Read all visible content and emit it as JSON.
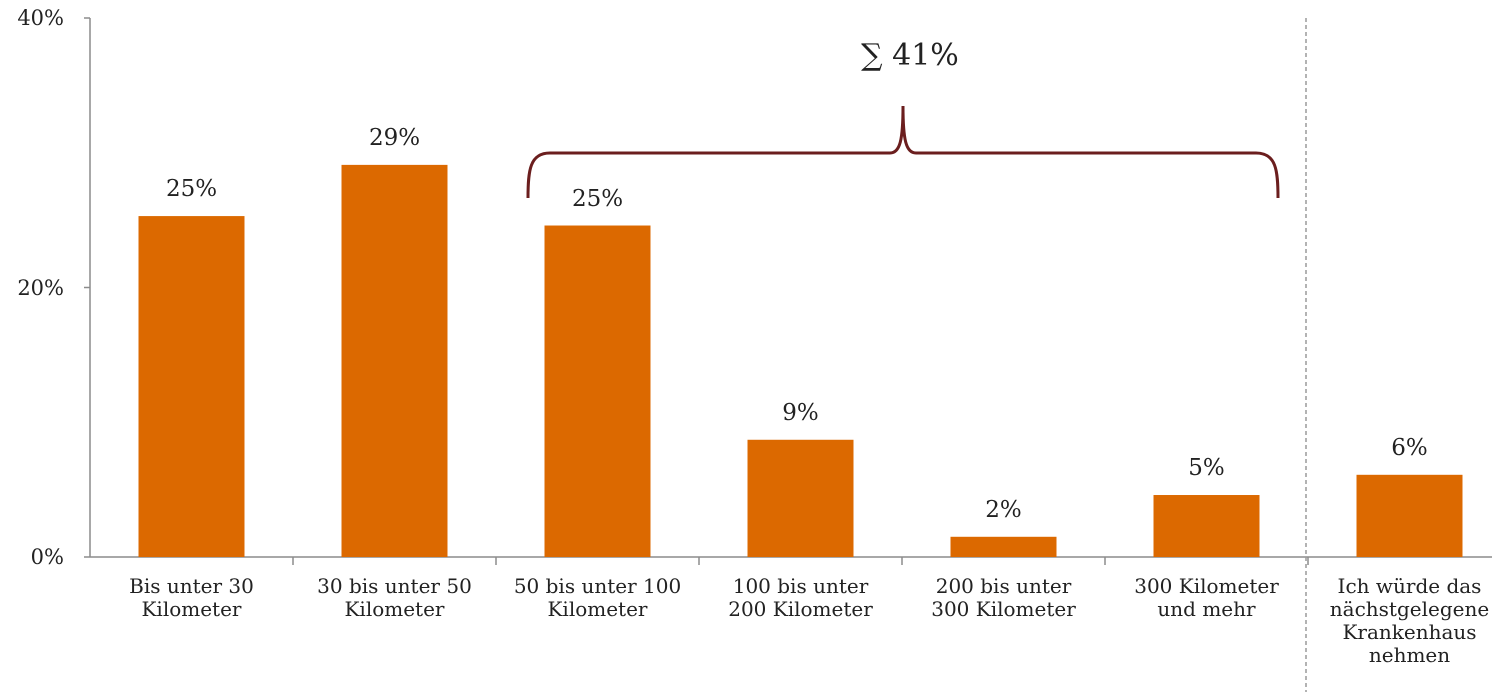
{
  "chart_data": {
    "type": "bar",
    "categories": [
      [
        "Bis unter 30",
        "Kilometer"
      ],
      [
        "30 bis unter 50",
        "Kilometer"
      ],
      [
        "50 bis unter 100",
        "Kilometer"
      ],
      [
        "100 bis unter",
        "200 Kilometer"
      ],
      [
        "200 bis unter",
        "300 Kilometer"
      ],
      [
        "300 Kilometer",
        "und mehr"
      ],
      [
        "Ich würde das",
        "nächstgelegene",
        "Krankenhaus",
        "nehmen"
      ]
    ],
    "values": [
      25.3,
      29.1,
      24.6,
      8.7,
      1.5,
      4.6,
      6.1
    ],
    "data_labels": [
      "25%",
      "29%",
      "25%",
      "9%",
      "2%",
      "5%",
      "6%"
    ],
    "ylim": [
      0,
      40
    ],
    "yticks": [
      {
        "value": 0,
        "label": "0%"
      },
      {
        "value": 20,
        "label": "20%"
      },
      {
        "value": 40,
        "label": "40%"
      }
    ],
    "bar_color": "#dc6900",
    "brace_color": "#6b1e1e",
    "annotation": "∑ 41%"
  }
}
